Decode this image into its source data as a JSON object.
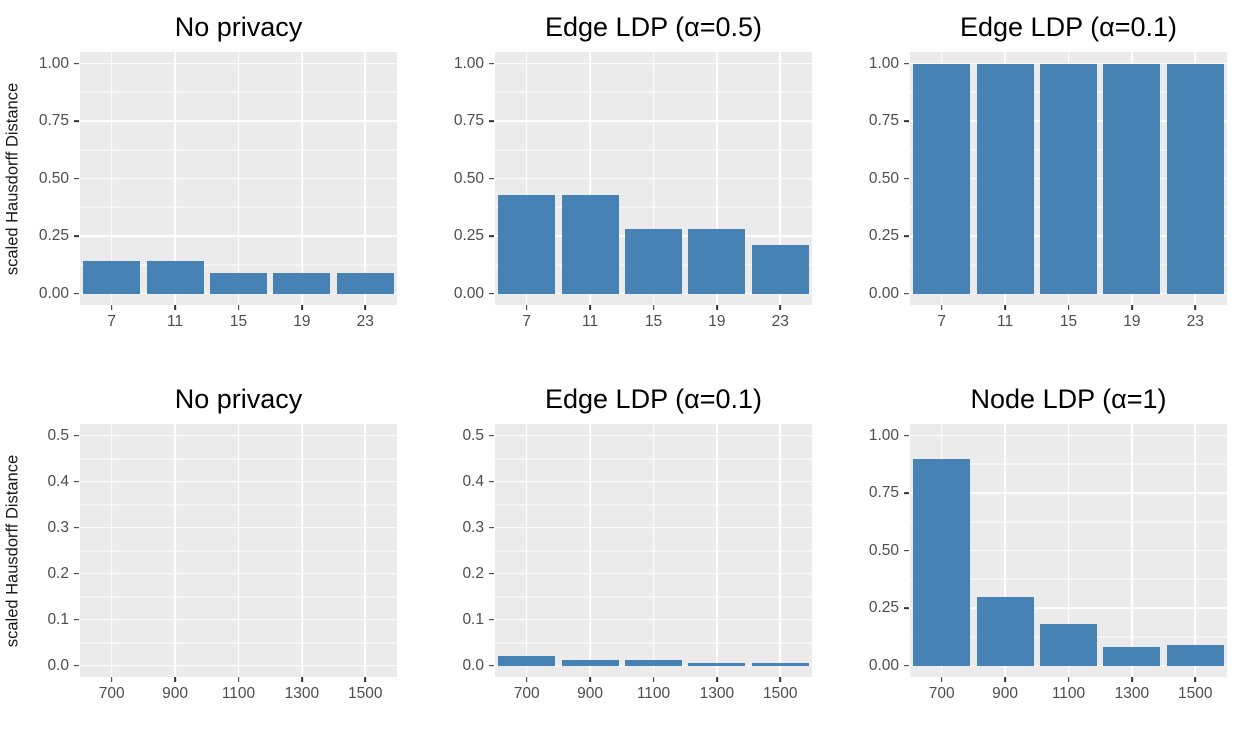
{
  "figure": {
    "ylab": "scaled Hausdorff Distance",
    "colors": {
      "bar": "#4682b4",
      "panel_bg": "#ebebeb",
      "grid": "#ffffff",
      "tick_text": "#4d4d4d",
      "title_text": "#000000",
      "axis_title_text": "#1a1a1a",
      "tick_mark": "#333333"
    }
  },
  "chart_data": [
    {
      "type": "bar",
      "title": "No privacy",
      "categories": [
        "7",
        "11",
        "15",
        "19",
        "23"
      ],
      "values": [
        0.14,
        0.14,
        0.09,
        0.09,
        0.09
      ],
      "xlabel": "",
      "ylabel": "scaled Hausdorff Distance",
      "ylim": [
        -0.05,
        1.05
      ],
      "yticks": [
        0,
        0.25,
        0.5,
        0.75,
        1.0
      ],
      "ytick_labels": [
        "0.00",
        "0.25",
        "0.50",
        "0.75",
        "1.00"
      ],
      "minor_yticks": [
        0.125,
        0.375,
        0.625,
        0.875
      ],
      "bar_width_frac": 0.9,
      "grid": true,
      "legend": "none"
    },
    {
      "type": "bar",
      "title": "Edge LDP (α=0.5)",
      "categories": [
        "7",
        "11",
        "15",
        "19",
        "23"
      ],
      "values": [
        0.43,
        0.43,
        0.28,
        0.28,
        0.21
      ],
      "xlabel": "",
      "ylabel": "",
      "ylim": [
        -0.05,
        1.05
      ],
      "yticks": [
        0,
        0.25,
        0.5,
        0.75,
        1.0
      ],
      "ytick_labels": [
        "0.00",
        "0.25",
        "0.50",
        "0.75",
        "1.00"
      ],
      "minor_yticks": [
        0.125,
        0.375,
        0.625,
        0.875
      ],
      "bar_width_frac": 0.9,
      "grid": true,
      "legend": "none"
    },
    {
      "type": "bar",
      "title": "Edge LDP (α=0.1)",
      "categories": [
        "7",
        "11",
        "15",
        "19",
        "23"
      ],
      "values": [
        1.0,
        1.0,
        1.0,
        1.0,
        1.0
      ],
      "xlabel": "",
      "ylabel": "",
      "ylim": [
        -0.05,
        1.05
      ],
      "yticks": [
        0,
        0.25,
        0.5,
        0.75,
        1.0
      ],
      "ytick_labels": [
        "0.00",
        "0.25",
        "0.50",
        "0.75",
        "1.00"
      ],
      "minor_yticks": [
        0.125,
        0.375,
        0.625,
        0.875
      ],
      "bar_width_frac": 0.9,
      "grid": true,
      "legend": "none"
    },
    {
      "type": "bar",
      "title": "No privacy",
      "categories": [
        "700",
        "900",
        "1100",
        "1300",
        "1500"
      ],
      "values": [
        0,
        0,
        0,
        0,
        0
      ],
      "xlabel": "",
      "ylabel": "scaled Hausdorff Distance",
      "ylim": [
        -0.025,
        0.525
      ],
      "yticks": [
        0,
        0.1,
        0.2,
        0.3,
        0.4,
        0.5
      ],
      "ytick_labels": [
        "0.0",
        "0.1",
        "0.2",
        "0.3",
        "0.4",
        "0.5"
      ],
      "minor_yticks": [
        0.05,
        0.15,
        0.25,
        0.35,
        0.45
      ],
      "bar_width_frac": 0.9,
      "grid": true,
      "legend": "none"
    },
    {
      "type": "bar",
      "title": "Edge LDP (α=0.1)",
      "categories": [
        "700",
        "900",
        "1100",
        "1300",
        "1500"
      ],
      "values": [
        0.02,
        0.012,
        0.012,
        0.005,
        0.005
      ],
      "xlabel": "",
      "ylabel": "",
      "ylim": [
        -0.025,
        0.525
      ],
      "yticks": [
        0,
        0.1,
        0.2,
        0.3,
        0.4,
        0.5
      ],
      "ytick_labels": [
        "0.0",
        "0.1",
        "0.2",
        "0.3",
        "0.4",
        "0.5"
      ],
      "minor_yticks": [
        0.05,
        0.15,
        0.25,
        0.35,
        0.45
      ],
      "bar_width_frac": 0.9,
      "grid": true,
      "legend": "none"
    },
    {
      "type": "bar",
      "title": "Node LDP (α=1)",
      "categories": [
        "700",
        "900",
        "1100",
        "1300",
        "1500"
      ],
      "values": [
        0.9,
        0.3,
        0.18,
        0.08,
        0.09
      ],
      "xlabel": "",
      "ylabel": "",
      "ylim": [
        -0.05,
        1.05
      ],
      "yticks": [
        0,
        0.25,
        0.5,
        0.75,
        1.0
      ],
      "ytick_labels": [
        "0.00",
        "0.25",
        "0.50",
        "0.75",
        "1.00"
      ],
      "minor_yticks": [
        0.125,
        0.375,
        0.625,
        0.875
      ],
      "bar_width_frac": 0.9,
      "grid": true,
      "legend": "none"
    }
  ]
}
